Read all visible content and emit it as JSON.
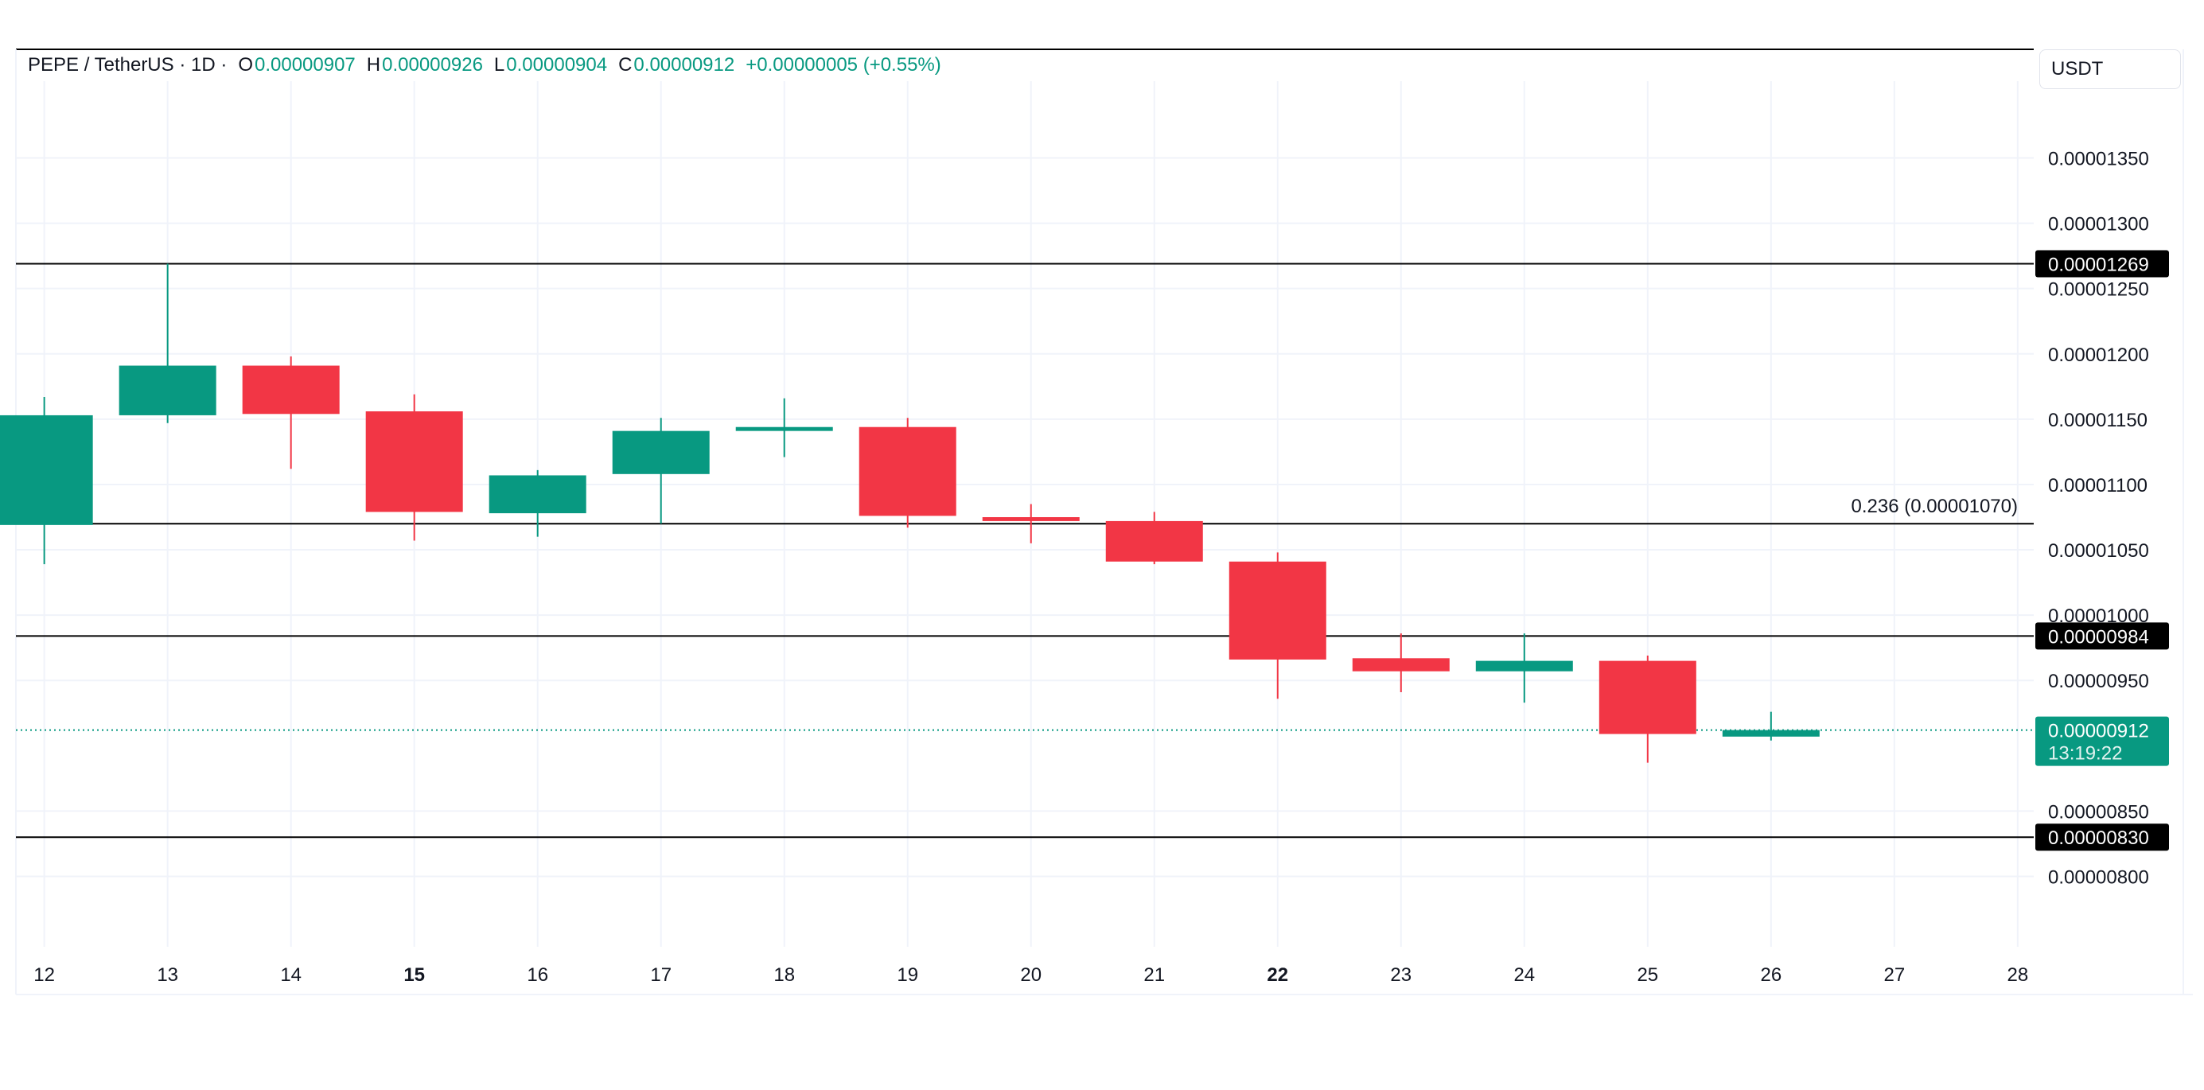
{
  "legend": {
    "symbol": "PEPE / TetherUS · 1D ·",
    "open_label": "O",
    "open_value": "0.00000907",
    "high_label": "H",
    "high_value": "0.00000926",
    "low_label": "L",
    "low_value": "0.00000904",
    "close_label": "C",
    "close_value": "0.00000912",
    "change": "+0.00000005 (+0.55%)"
  },
  "currency_button": "USDT",
  "colors": {
    "up": "#089981",
    "down": "#f23645",
    "text": "#131722",
    "grid": "#f0f3fa",
    "hline": "#000000"
  },
  "chart_data": {
    "type": "candlestick",
    "title": "PEPE / TetherUS · 1D",
    "x_ticks": [
      {
        "label": "12",
        "day": 12,
        "bold": false
      },
      {
        "label": "13",
        "day": 13,
        "bold": false
      },
      {
        "label": "14",
        "day": 14,
        "bold": false
      },
      {
        "label": "15",
        "day": 15,
        "bold": true
      },
      {
        "label": "16",
        "day": 16,
        "bold": false
      },
      {
        "label": "17",
        "day": 17,
        "bold": false
      },
      {
        "label": "18",
        "day": 18,
        "bold": false
      },
      {
        "label": "19",
        "day": 19,
        "bold": false
      },
      {
        "label": "20",
        "day": 20,
        "bold": false
      },
      {
        "label": "21",
        "day": 21,
        "bold": false
      },
      {
        "label": "22",
        "day": 22,
        "bold": true
      },
      {
        "label": "23",
        "day": 23,
        "bold": false
      },
      {
        "label": "24",
        "day": 24,
        "bold": false
      },
      {
        "label": "25",
        "day": 25,
        "bold": false
      },
      {
        "label": "26",
        "day": 26,
        "bold": false
      },
      {
        "label": "27",
        "day": 27,
        "bold": false
      },
      {
        "label": "28",
        "day": 28,
        "bold": false
      }
    ],
    "y_ticks": [
      "0.00001350",
      "0.00001300",
      "0.00001250",
      "0.00001200",
      "0.00001150",
      "0.00001100",
      "0.00001050",
      "0.00001000",
      "0.00000950",
      "0.00000850",
      "0.00000800"
    ],
    "y_tick_values": [
      13.5,
      13.0,
      12.5,
      12.0,
      11.5,
      11.0,
      10.5,
      10.0,
      9.5,
      8.5,
      8.0
    ],
    "ylim": [
      7.4,
      14.1
    ],
    "xlim": [
      11.77,
      28.13
    ],
    "value_scale_note": "prices in units of 1e-6 USDT",
    "candles": [
      {
        "day": 12,
        "open": 10.69,
        "high": 11.67,
        "low": 10.39,
        "close": 11.53
      },
      {
        "day": 13,
        "open": 11.53,
        "high": 12.69,
        "low": 11.47,
        "close": 11.91
      },
      {
        "day": 14,
        "open": 11.91,
        "high": 11.98,
        "low": 11.12,
        "close": 11.54
      },
      {
        "day": 15,
        "open": 11.56,
        "high": 11.69,
        "low": 10.57,
        "close": 10.79
      },
      {
        "day": 16,
        "open": 10.78,
        "high": 11.11,
        "low": 10.6,
        "close": 11.07
      },
      {
        "day": 17,
        "open": 11.08,
        "high": 11.51,
        "low": 10.7,
        "close": 11.41
      },
      {
        "day": 18,
        "open": 11.41,
        "high": 11.66,
        "low": 11.21,
        "close": 11.44
      },
      {
        "day": 19,
        "open": 11.44,
        "high": 11.51,
        "low": 10.67,
        "close": 10.76
      },
      {
        "day": 20,
        "open": 10.75,
        "high": 10.85,
        "low": 10.55,
        "close": 10.72
      },
      {
        "day": 21,
        "open": 10.72,
        "high": 10.79,
        "low": 10.39,
        "close": 10.41
      },
      {
        "day": 22,
        "open": 10.41,
        "high": 10.48,
        "low": 9.36,
        "close": 9.66
      },
      {
        "day": 23,
        "open": 9.67,
        "high": 9.86,
        "low": 9.41,
        "close": 9.57
      },
      {
        "day": 24,
        "open": 9.57,
        "high": 9.86,
        "low": 9.33,
        "close": 9.65
      },
      {
        "day": 25,
        "open": 9.65,
        "high": 9.69,
        "low": 8.87,
        "close": 9.09
      },
      {
        "day": 26,
        "open": 9.07,
        "high": 9.26,
        "low": 9.04,
        "close": 9.12
      }
    ],
    "horizontal_lines": [
      {
        "value": 12.69,
        "label": "0.00001269",
        "kind": "badge"
      },
      {
        "value": 10.7,
        "label": "0.236 (0.00001070)",
        "kind": "fib"
      },
      {
        "value": 9.84,
        "label": "0.00000984",
        "kind": "badge"
      },
      {
        "value": 8.3,
        "label": "0.00000830",
        "kind": "badge"
      }
    ],
    "last_price": {
      "value": 9.12,
      "label": "0.00000912",
      "countdown": "13:19:22"
    }
  }
}
